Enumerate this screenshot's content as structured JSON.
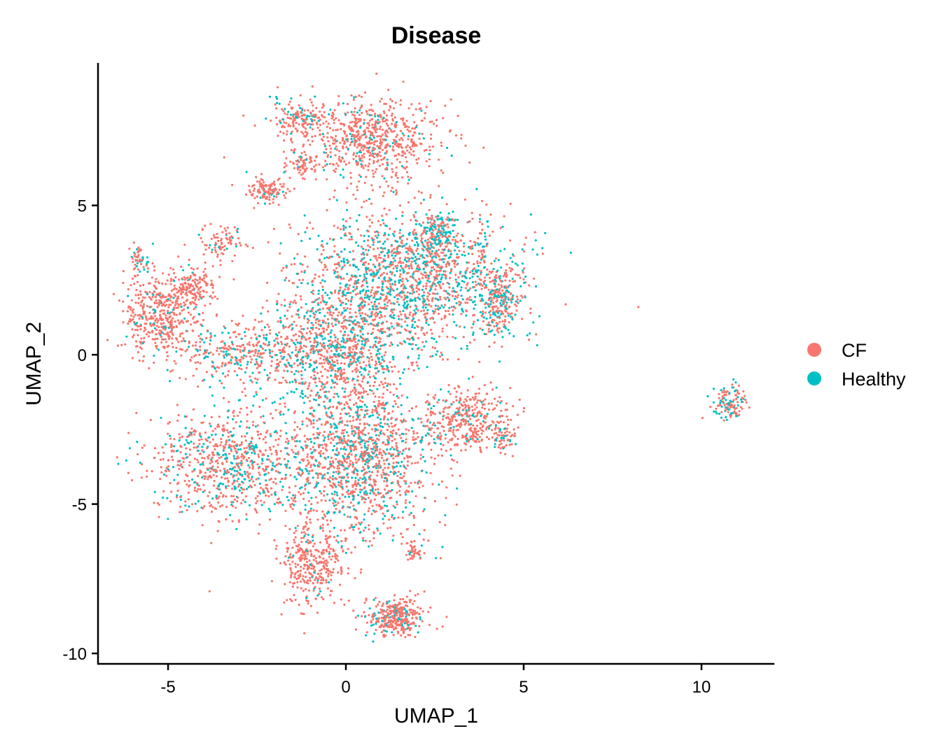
{
  "chart_data": {
    "type": "scatter",
    "title": "Disease",
    "xlabel": "UMAP_1",
    "ylabel": "UMAP_2",
    "xlim": [
      -6.97,
      12.03
    ],
    "ylim": [
      -10.35,
      9.77
    ],
    "x_ticks": [
      -5,
      0,
      5,
      10
    ],
    "y_ticks": [
      5,
      0,
      -5,
      -10
    ],
    "x_tick_labels": [
      "-5",
      "0",
      "5",
      "10"
    ],
    "y_tick_labels": [
      "5",
      "0",
      "-5",
      "-10"
    ],
    "grid": false,
    "legend_position": "right",
    "series": [
      {
        "name": "CF",
        "color": "#F8766D"
      },
      {
        "name": "Healthy",
        "color": "#00BFC4"
      }
    ],
    "clusters": [
      {
        "center": [
          0.6,
          7.2
        ],
        "spread": [
          1.0,
          0.7
        ],
        "n": 700,
        "healthy_frac": 0.12
      },
      {
        "center": [
          -1.3,
          7.9
        ],
        "spread": [
          0.4,
          0.3
        ],
        "n": 150,
        "healthy_frac": 0.2
      },
      {
        "center": [
          -2.2,
          5.5
        ],
        "spread": [
          0.3,
          0.2
        ],
        "n": 120,
        "healthy_frac": 0.05
      },
      {
        "center": [
          -1.2,
          6.4
        ],
        "spread": [
          0.2,
          0.2
        ],
        "n": 60,
        "healthy_frac": 0.05
      },
      {
        "center": [
          -5.2,
          1.3
        ],
        "spread": [
          0.5,
          0.7
        ],
        "n": 450,
        "healthy_frac": 0.1
      },
      {
        "center": [
          -5.8,
          3.2
        ],
        "spread": [
          0.15,
          0.3
        ],
        "n": 50,
        "healthy_frac": 0.3
      },
      {
        "center": [
          -3.5,
          3.8
        ],
        "spread": [
          0.3,
          0.3
        ],
        "n": 80,
        "healthy_frac": 0.2
      },
      {
        "center": [
          -4.3,
          2.2
        ],
        "spread": [
          0.3,
          0.4
        ],
        "n": 150,
        "healthy_frac": 0.1
      },
      {
        "center": [
          1.8,
          2.6
        ],
        "spread": [
          1.5,
          1.1
        ],
        "n": 1500,
        "healthy_frac": 0.42
      },
      {
        "center": [
          2.5,
          4.1
        ],
        "spread": [
          0.3,
          0.3
        ],
        "n": 150,
        "healthy_frac": 0.6
      },
      {
        "center": [
          4.3,
          1.8
        ],
        "spread": [
          0.3,
          0.6
        ],
        "n": 250,
        "healthy_frac": 0.35
      },
      {
        "center": [
          -0.2,
          0.2
        ],
        "spread": [
          1.0,
          1.0
        ],
        "n": 900,
        "healthy_frac": 0.35
      },
      {
        "center": [
          -3.0,
          0.0
        ],
        "spread": [
          1.0,
          0.5
        ],
        "n": 350,
        "healthy_frac": 0.25
      },
      {
        "center": [
          -3.2,
          -3.6
        ],
        "spread": [
          1.1,
          0.9
        ],
        "n": 800,
        "healthy_frac": 0.3
      },
      {
        "center": [
          0.4,
          -3.5
        ],
        "spread": [
          1.0,
          1.3
        ],
        "n": 1300,
        "healthy_frac": 0.3
      },
      {
        "center": [
          3.4,
          -2.2
        ],
        "spread": [
          0.6,
          0.5
        ],
        "n": 400,
        "healthy_frac": 0.15
      },
      {
        "center": [
          4.5,
          -2.9
        ],
        "spread": [
          0.15,
          0.3
        ],
        "n": 40,
        "healthy_frac": 0.4
      },
      {
        "center": [
          -1.0,
          -7.0
        ],
        "spread": [
          0.5,
          0.7
        ],
        "n": 350,
        "healthy_frac": 0.05
      },
      {
        "center": [
          1.4,
          -8.8
        ],
        "spread": [
          0.4,
          0.3
        ],
        "n": 350,
        "healthy_frac": 0.15
      },
      {
        "center": [
          1.9,
          -6.6
        ],
        "spread": [
          0.1,
          0.15
        ],
        "n": 40,
        "healthy_frac": 0.1
      },
      {
        "center": [
          10.8,
          -1.6
        ],
        "spread": [
          0.25,
          0.3
        ],
        "n": 120,
        "healthy_frac": 0.3
      }
    ]
  }
}
